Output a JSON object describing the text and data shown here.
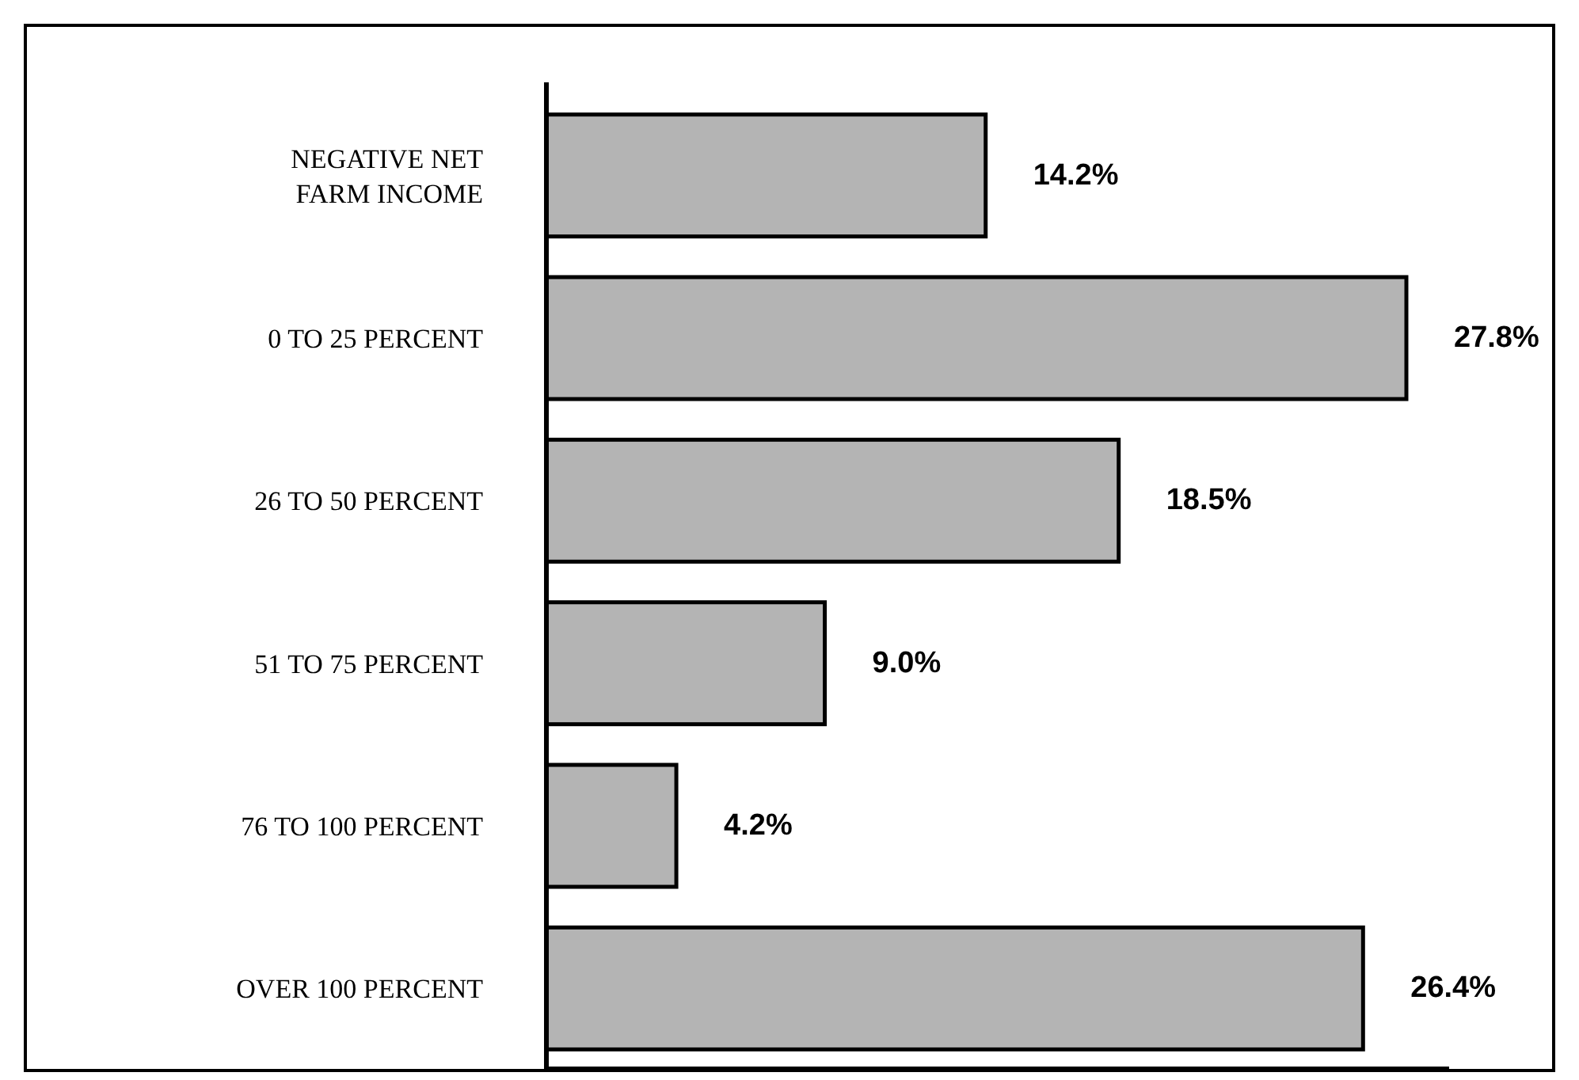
{
  "chart_data": {
    "type": "bar",
    "orientation": "horizontal",
    "relative": false,
    "data_labels": true,
    "categories": [
      "NEGATIVE NET FARM INCOME",
      "0 TO 25 PERCENT",
      "26 TO 50 PERCENT",
      "51 TO 75 PERCENT",
      "76 TO 100 PERCENT",
      "OVER 100 PERCENT"
    ],
    "values": [
      14.2,
      27.8,
      18.5,
      9.0,
      4.2,
      26.4
    ],
    "value_labels": [
      "14.2%",
      "27.8%",
      "18.5%",
      "9.0%",
      "4.2%",
      "26.4%"
    ],
    "color": "#b4b4b4"
  }
}
